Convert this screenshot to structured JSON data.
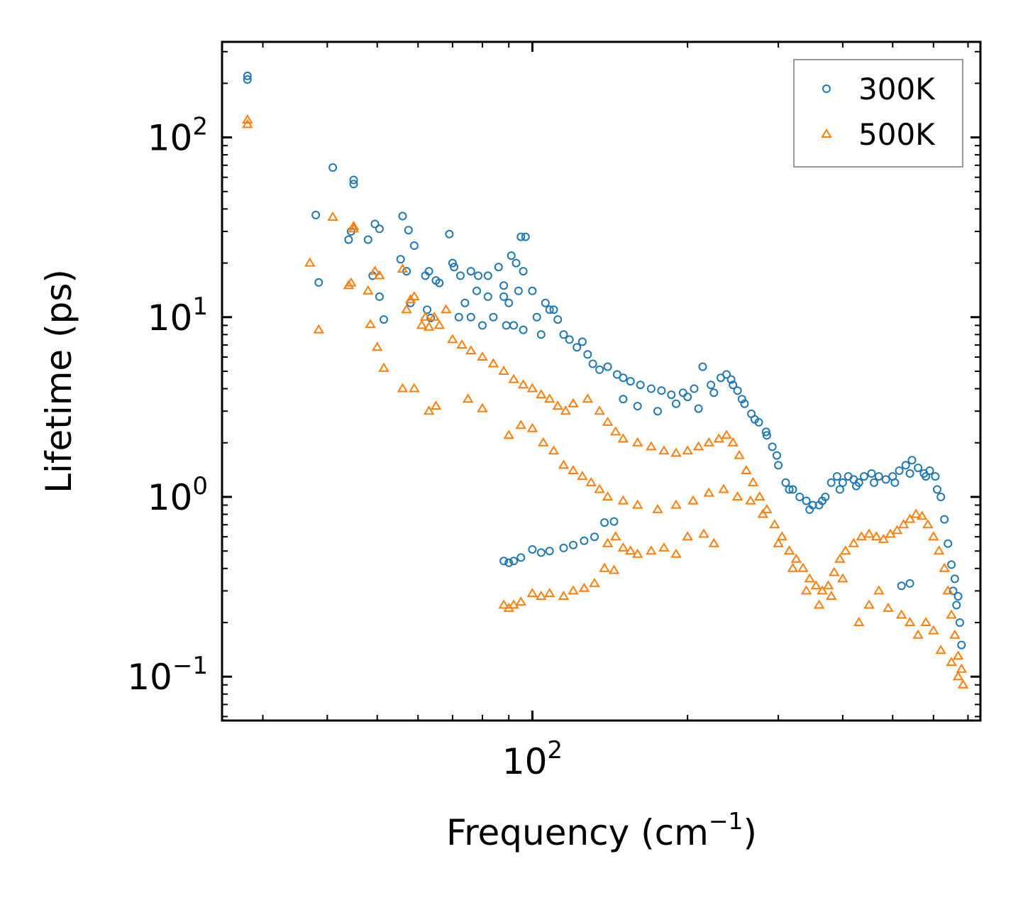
{
  "chart_data": {
    "type": "scatter",
    "title": "",
    "xlabel": "Frequency (cm",
    "xlabel_sup": "−1",
    "xlabel_close": ")",
    "ylabel": "Lifetime (ps)",
    "xscale": "log",
    "yscale": "log",
    "xlim": [
      25,
      740
    ],
    "ylim": [
      0.057,
      340
    ],
    "x_ticks": [
      {
        "value": 100,
        "base": "10",
        "exp": "2"
      }
    ],
    "y_ticks": [
      {
        "value": 0.1,
        "base": "10",
        "exp": "−1"
      },
      {
        "value": 1,
        "base": "10",
        "exp": "0"
      },
      {
        "value": 10,
        "base": "10",
        "exp": "1"
      },
      {
        "value": 100,
        "base": "10",
        "exp": "2"
      }
    ],
    "legend_position": "top-right",
    "colors": {
      "300K": "#1f77b4",
      "500K": "#ff7f0e"
    },
    "series": [
      {
        "name": "300K",
        "marker": "circle",
        "points": [
          [
            28,
            220
          ],
          [
            28,
            210
          ],
          [
            38,
            37
          ],
          [
            38.5,
            15.6
          ],
          [
            41,
            68
          ],
          [
            44,
            27
          ],
          [
            44.5,
            30
          ],
          [
            45,
            55
          ],
          [
            45,
            58
          ],
          [
            48,
            27
          ],
          [
            49.5,
            33
          ],
          [
            49,
            17
          ],
          [
            50.5,
            31
          ],
          [
            50.5,
            13
          ],
          [
            51.5,
            9.7
          ],
          [
            56,
            36.5
          ],
          [
            57.5,
            30.5
          ],
          [
            59,
            25
          ],
          [
            55.5,
            21
          ],
          [
            57,
            18
          ],
          [
            62,
            17
          ],
          [
            63,
            18
          ],
          [
            65,
            16
          ],
          [
            66,
            15.5
          ],
          [
            62.5,
            11
          ],
          [
            58,
            12
          ],
          [
            63.5,
            9.9
          ],
          [
            69,
            29
          ],
          [
            70,
            20
          ],
          [
            70.5,
            19
          ],
          [
            72.5,
            17
          ],
          [
            76,
            18
          ],
          [
            78.5,
            17
          ],
          [
            82,
            17
          ],
          [
            86,
            19
          ],
          [
            88,
            15
          ],
          [
            90,
            12
          ],
          [
            91,
            22
          ],
          [
            93,
            20
          ],
          [
            95,
            28
          ],
          [
            97,
            28
          ],
          [
            96,
            18
          ],
          [
            94,
            14
          ],
          [
            88,
            13
          ],
          [
            82,
            13
          ],
          [
            78,
            14
          ],
          [
            74,
            12
          ],
          [
            72,
            10
          ],
          [
            76,
            10
          ],
          [
            80,
            9
          ],
          [
            84,
            10
          ],
          [
            89,
            9
          ],
          [
            92,
            9
          ],
          [
            96,
            8.5
          ],
          [
            100,
            14
          ],
          [
            102,
            10
          ],
          [
            104,
            8
          ],
          [
            106,
            12
          ],
          [
            108,
            11
          ],
          [
            110,
            11
          ],
          [
            112,
            9.7
          ],
          [
            115,
            8
          ],
          [
            118,
            7.5
          ],
          [
            122,
            6.8
          ],
          [
            125,
            7.3
          ],
          [
            128,
            6.2
          ],
          [
            131,
            5.5
          ],
          [
            135,
            5.1
          ],
          [
            140,
            5.3
          ],
          [
            146,
            4.8
          ],
          [
            150,
            4.6
          ],
          [
            155,
            4.4
          ],
          [
            162,
            4.2
          ],
          [
            170,
            4.0
          ],
          [
            178,
            3.9
          ],
          [
            186,
            3.7
          ],
          [
            196,
            3.8
          ],
          [
            206,
            4.0
          ],
          [
            214,
            5.3
          ],
          [
            222,
            4.2
          ],
          [
            232,
            4.6
          ],
          [
            238,
            4.8
          ],
          [
            243,
            4.5
          ],
          [
            250,
            3.9
          ],
          [
            258,
            3.3
          ],
          [
            266,
            2.9
          ],
          [
            275,
            2.6
          ],
          [
            284,
            2.3
          ],
          [
            292,
            1.9
          ],
          [
            300,
            1.5
          ],
          [
            310,
            1.2
          ],
          [
            320,
            1.1
          ],
          [
            330,
            1.0
          ],
          [
            340,
            0.95
          ],
          [
            350,
            0.9
          ],
          [
            360,
            0.9
          ],
          [
            370,
            1.0
          ],
          [
            380,
            1.2
          ],
          [
            390,
            1.3
          ],
          [
            400,
            1.2
          ],
          [
            410,
            1.3
          ],
          [
            420,
            1.25
          ],
          [
            430,
            1.2
          ],
          [
            440,
            1.3
          ],
          [
            455,
            1.35
          ],
          [
            470,
            1.3
          ],
          [
            485,
            1.25
          ],
          [
            500,
            1.3
          ],
          [
            515,
            1.4
          ],
          [
            530,
            1.5
          ],
          [
            545,
            1.6
          ],
          [
            560,
            1.45
          ],
          [
            575,
            1.35
          ],
          [
            590,
            1.4
          ],
          [
            605,
            1.3
          ],
          [
            620,
            1.0
          ],
          [
            630,
            0.75
          ],
          [
            640,
            0.55
          ],
          [
            650,
            0.42
          ],
          [
            660,
            0.35
          ],
          [
            670,
            0.28
          ],
          [
            675,
            0.2
          ],
          [
            680,
            0.15
          ],
          [
            150,
            3.5
          ],
          [
            160,
            3.2
          ],
          [
            175,
            3.0
          ],
          [
            190,
            3.3
          ],
          [
            200,
            3.6
          ],
          [
            210,
            3.1
          ],
          [
            225,
            3.8
          ],
          [
            245,
            4.2
          ],
          [
            255,
            3.5
          ],
          [
            270,
            2.7
          ],
          [
            285,
            2.2
          ],
          [
            298,
            1.7
          ],
          [
            315,
            1.1
          ],
          [
            345,
            0.85
          ],
          [
            365,
            0.95
          ],
          [
            395,
            1.1
          ],
          [
            425,
            1.15
          ],
          [
            460,
            1.2
          ],
          [
            505,
            1.2
          ],
          [
            540,
            1.35
          ],
          [
            580,
            1.3
          ],
          [
            610,
            1.1
          ],
          [
            520,
            0.32
          ],
          [
            540,
            0.33
          ],
          [
            655,
            0.3
          ],
          [
            665,
            0.25
          ],
          [
            88,
            0.44
          ],
          [
            90,
            0.43
          ],
          [
            92,
            0.44
          ],
          [
            95,
            0.46
          ],
          [
            100,
            0.51
          ],
          [
            104,
            0.49
          ],
          [
            108,
            0.5
          ],
          [
            115,
            0.52
          ],
          [
            120,
            0.54
          ],
          [
            126,
            0.57
          ],
          [
            132,
            0.6
          ],
          [
            138,
            0.72
          ],
          [
            144,
            0.73
          ]
        ]
      },
      {
        "name": "500K",
        "marker": "triangle",
        "points": [
          [
            28,
            125
          ],
          [
            28,
            118
          ],
          [
            37,
            20
          ],
          [
            38.5,
            8.5
          ],
          [
            41,
            36
          ],
          [
            44,
            15
          ],
          [
            44.5,
            15.5
          ],
          [
            45,
            32
          ],
          [
            45,
            31
          ],
          [
            48,
            14
          ],
          [
            48.5,
            9.1
          ],
          [
            49.5,
            18
          ],
          [
            50.5,
            17
          ],
          [
            50,
            6.8
          ],
          [
            51.5,
            5.2
          ],
          [
            56,
            18.5
          ],
          [
            57,
            11
          ],
          [
            59,
            13
          ],
          [
            61,
            9
          ],
          [
            62,
            10
          ],
          [
            63,
            8.8
          ],
          [
            64.5,
            10
          ],
          [
            66,
            9
          ],
          [
            68,
            11
          ],
          [
            70,
            7.5
          ],
          [
            73,
            7
          ],
          [
            76,
            6.5
          ],
          [
            80,
            6
          ],
          [
            84,
            5.5
          ],
          [
            88,
            5
          ],
          [
            92,
            4.5
          ],
          [
            96,
            4.2
          ],
          [
            100,
            4
          ],
          [
            104,
            3.7
          ],
          [
            108,
            3.5
          ],
          [
            112,
            3.2
          ],
          [
            116,
            3
          ],
          [
            120,
            3.3
          ],
          [
            128,
            3.5
          ],
          [
            135,
            3
          ],
          [
            140,
            2.6
          ],
          [
            145,
            2.3
          ],
          [
            150,
            2.1
          ],
          [
            160,
            2.0
          ],
          [
            170,
            1.9
          ],
          [
            180,
            1.8
          ],
          [
            190,
            1.75
          ],
          [
            200,
            1.8
          ],
          [
            210,
            1.9
          ],
          [
            220,
            2.0
          ],
          [
            230,
            2.1
          ],
          [
            238,
            2.2
          ],
          [
            245,
            2.0
          ],
          [
            252,
            1.7
          ],
          [
            260,
            1.4
          ],
          [
            268,
            1.2
          ],
          [
            276,
            1.0
          ],
          [
            285,
            0.85
          ],
          [
            295,
            0.7
          ],
          [
            305,
            0.6
          ],
          [
            315,
            0.5
          ],
          [
            325,
            0.45
          ],
          [
            335,
            0.4
          ],
          [
            345,
            0.35
          ],
          [
            355,
            0.32
          ],
          [
            365,
            0.3
          ],
          [
            375,
            0.32
          ],
          [
            385,
            0.38
          ],
          [
            395,
            0.45
          ],
          [
            405,
            0.5
          ],
          [
            420,
            0.55
          ],
          [
            435,
            0.6
          ],
          [
            450,
            0.62
          ],
          [
            465,
            0.6
          ],
          [
            480,
            0.58
          ],
          [
            495,
            0.62
          ],
          [
            510,
            0.65
          ],
          [
            525,
            0.7
          ],
          [
            540,
            0.75
          ],
          [
            555,
            0.8
          ],
          [
            570,
            0.78
          ],
          [
            585,
            0.7
          ],
          [
            600,
            0.6
          ],
          [
            615,
            0.5
          ],
          [
            630,
            0.4
          ],
          [
            640,
            0.3
          ],
          [
            650,
            0.22
          ],
          [
            660,
            0.17
          ],
          [
            670,
            0.13
          ],
          [
            680,
            0.11
          ],
          [
            685,
            0.09
          ],
          [
            63,
            3
          ],
          [
            65,
            3.2
          ],
          [
            56,
            4
          ],
          [
            59,
            4
          ],
          [
            58,
            12.5
          ],
          [
            75,
            3.5
          ],
          [
            80,
            3.1
          ],
          [
            90,
            2.2
          ],
          [
            95,
            2.5
          ],
          [
            100,
            2.4
          ],
          [
            105,
            2.0
          ],
          [
            110,
            1.8
          ],
          [
            115,
            1.5
          ],
          [
            120,
            1.4
          ],
          [
            125,
            1.3
          ],
          [
            130,
            1.2
          ],
          [
            135,
            1.1
          ],
          [
            140,
            1.0
          ],
          [
            150,
            0.95
          ],
          [
            160,
            0.9
          ],
          [
            175,
            0.85
          ],
          [
            190,
            0.9
          ],
          [
            205,
            0.95
          ],
          [
            220,
            1.05
          ],
          [
            235,
            1.1
          ],
          [
            250,
            1.0
          ],
          [
            265,
            0.95
          ],
          [
            280,
            0.8
          ],
          [
            300,
            0.55
          ],
          [
            320,
            0.4
          ],
          [
            340,
            0.3
          ],
          [
            360,
            0.25
          ],
          [
            380,
            0.28
          ],
          [
            400,
            0.35
          ],
          [
            430,
            0.2
          ],
          [
            450,
            0.25
          ],
          [
            470,
            0.3
          ],
          [
            490,
            0.24
          ],
          [
            520,
            0.22
          ],
          [
            540,
            0.2
          ],
          [
            560,
            0.17
          ],
          [
            580,
            0.2
          ],
          [
            600,
            0.18
          ],
          [
            620,
            0.14
          ],
          [
            650,
            0.12
          ],
          [
            670,
            0.1
          ],
          [
            140,
            0.55
          ],
          [
            145,
            0.6
          ],
          [
            150,
            0.52
          ],
          [
            155,
            0.5
          ],
          [
            160,
            0.48
          ],
          [
            170,
            0.5
          ],
          [
            180,
            0.52
          ],
          [
            190,
            0.48
          ],
          [
            200,
            0.6
          ],
          [
            215,
            0.62
          ],
          [
            225,
            0.55
          ],
          [
            88,
            0.25
          ],
          [
            90,
            0.24
          ],
          [
            92,
            0.25
          ],
          [
            95,
            0.26
          ],
          [
            100,
            0.29
          ],
          [
            104,
            0.28
          ],
          [
            108,
            0.29
          ],
          [
            115,
            0.28
          ],
          [
            120,
            0.3
          ],
          [
            126,
            0.31
          ],
          [
            132,
            0.33
          ],
          [
            138,
            0.4
          ],
          [
            144,
            0.39
          ]
        ]
      }
    ]
  }
}
